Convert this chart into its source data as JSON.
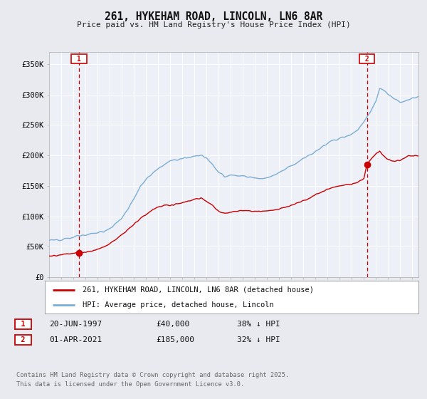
{
  "title": "261, HYKEHAM ROAD, LINCOLN, LN6 8AR",
  "subtitle": "Price paid vs. HM Land Registry's House Price Index (HPI)",
  "bg_color": "#e8eaf0",
  "plot_bg_color": "#eef0f8",
  "ylim": [
    0,
    370000
  ],
  "yticks": [
    0,
    50000,
    100000,
    150000,
    200000,
    250000,
    300000,
    350000
  ],
  "ytick_labels": [
    "£0",
    "£50K",
    "£100K",
    "£150K",
    "£200K",
    "£250K",
    "£300K",
    "£350K"
  ],
  "xmin": 1995.0,
  "xmax": 2025.5,
  "red_line_color": "#cc0000",
  "blue_line_color": "#7aaed4",
  "dashed_line_color": "#cc0000",
  "sale1_x": 1997.47,
  "sale1_y": 40000,
  "sale2_x": 2021.25,
  "sale2_y": 185000,
  "legend_label_red": "261, HYKEHAM ROAD, LINCOLN, LN6 8AR (detached house)",
  "legend_label_blue": "HPI: Average price, detached house, Lincoln",
  "sale1_date": "20-JUN-1997",
  "sale1_price": "£40,000",
  "sale1_hpi": "38% ↓ HPI",
  "sale2_date": "01-APR-2021",
  "sale2_price": "£185,000",
  "sale2_hpi": "32% ↓ HPI",
  "footnote": "Contains HM Land Registry data © Crown copyright and database right 2025.\nThis data is licensed under the Open Government Licence v3.0."
}
